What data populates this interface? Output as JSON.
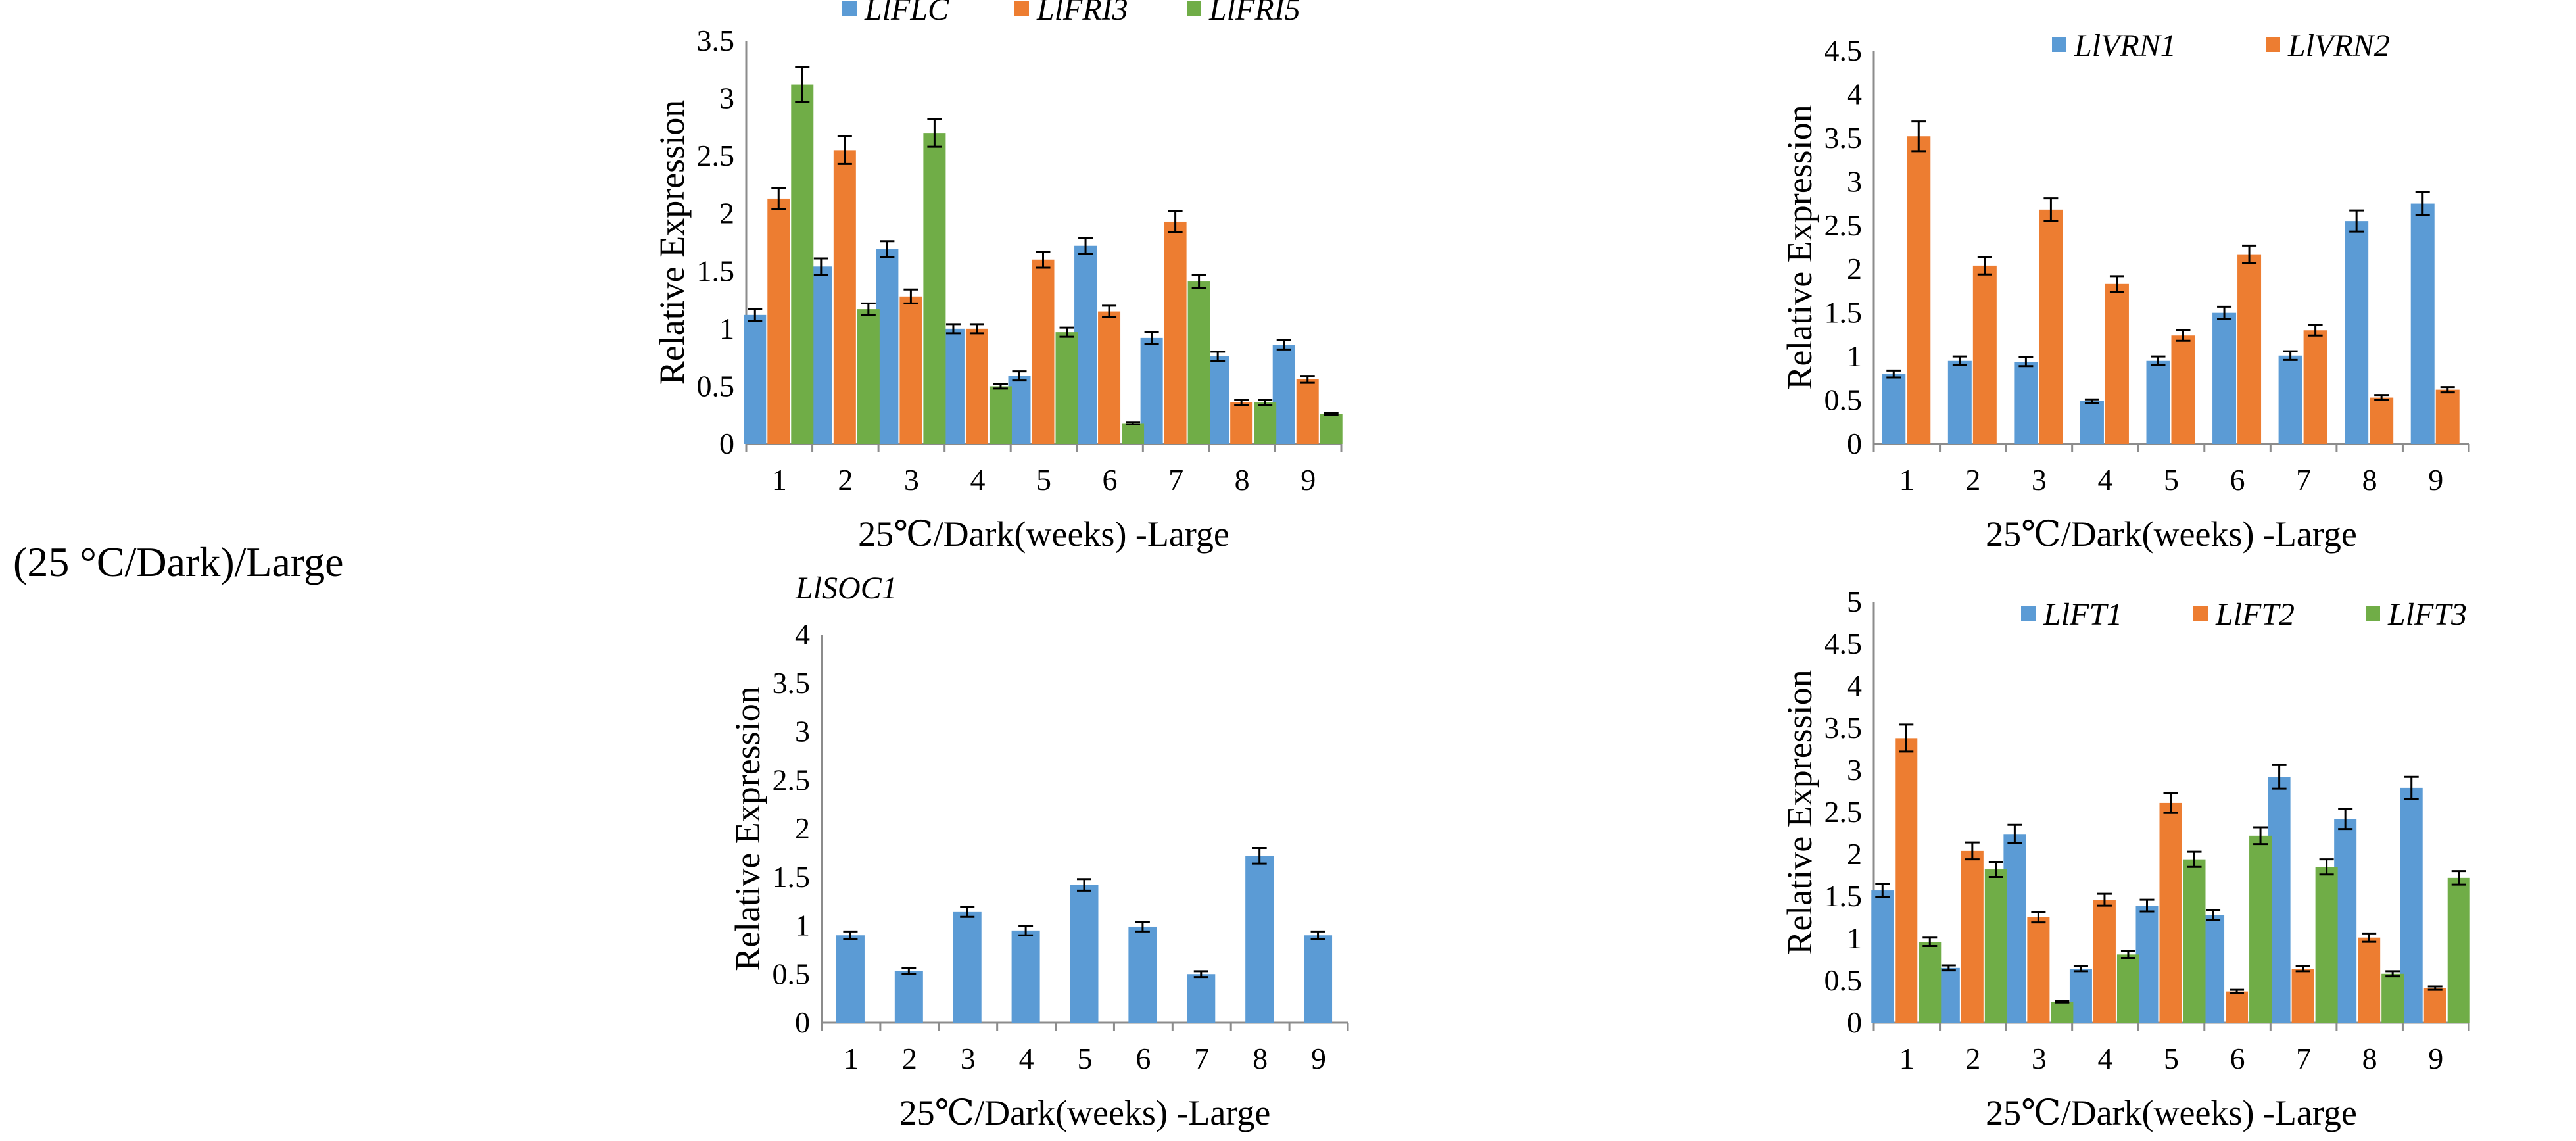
{
  "side_label": "(25 °C/Dark)/Large",
  "colors": {
    "blue": "#5b9bd5",
    "orange": "#ed7d31",
    "green": "#70ad47"
  },
  "chart_data": [
    {
      "type": "bar",
      "title": "",
      "xlabel": "25℃/Dark(weeks) -Large",
      "ylabel": "Relative Expression",
      "categories": [
        "1",
        "2",
        "3",
        "4",
        "5",
        "6",
        "7",
        "8",
        "9"
      ],
      "ylim": [
        0,
        3.5
      ],
      "yticks": [
        "0",
        "0.5",
        "1",
        "1.5",
        "2",
        "2.5",
        "3",
        "3.5"
      ],
      "legend_position": "top",
      "series": [
        {
          "name": "LlFLC",
          "color": "#5b9bd5",
          "values": [
            1.12,
            1.54,
            1.69,
            1.0,
            0.59,
            1.72,
            0.92,
            0.76,
            0.86
          ],
          "errors": [
            0.05,
            0.07,
            0.07,
            0.04,
            0.04,
            0.07,
            0.05,
            0.04,
            0.04
          ]
        },
        {
          "name": "LlFRI3",
          "color": "#ed7d31",
          "values": [
            2.13,
            2.55,
            1.28,
            1.0,
            1.6,
            1.15,
            1.93,
            0.36,
            0.56
          ],
          "errors": [
            0.09,
            0.12,
            0.06,
            0.04,
            0.07,
            0.05,
            0.09,
            0.02,
            0.03
          ]
        },
        {
          "name": "LlFRI5",
          "color": "#70ad47",
          "values": [
            3.12,
            1.17,
            2.7,
            0.5,
            0.97,
            0.18,
            1.41,
            0.36,
            0.26
          ],
          "errors": [
            0.15,
            0.05,
            0.12,
            0.02,
            0.04,
            0.01,
            0.06,
            0.02,
            0.01
          ]
        }
      ]
    },
    {
      "type": "bar",
      "title": "",
      "xlabel": "25℃/Dark(weeks) -Large",
      "ylabel": "Relative Expression",
      "categories": [
        "1",
        "2",
        "3",
        "4",
        "5",
        "6",
        "7",
        "8",
        "9"
      ],
      "ylim": [
        0,
        4.5
      ],
      "yticks": [
        "0",
        "0.5",
        "1",
        "1.5",
        "2",
        "2.5",
        "3",
        "3.5",
        "4",
        "4.5"
      ],
      "legend_position": "top",
      "series": [
        {
          "name": "LlVRN1",
          "color": "#5b9bd5",
          "values": [
            0.8,
            0.95,
            0.94,
            0.49,
            0.95,
            1.5,
            1.01,
            2.55,
            2.75
          ],
          "errors": [
            0.04,
            0.05,
            0.05,
            0.02,
            0.05,
            0.07,
            0.05,
            0.12,
            0.13
          ]
        },
        {
          "name": "LlVRN2",
          "color": "#ed7d31",
          "values": [
            3.52,
            2.04,
            2.68,
            1.83,
            1.24,
            2.17,
            1.3,
            0.53,
            0.62
          ],
          "errors": [
            0.17,
            0.1,
            0.13,
            0.09,
            0.06,
            0.1,
            0.06,
            0.03,
            0.03
          ]
        }
      ]
    },
    {
      "type": "bar",
      "title": "",
      "xlabel": "25℃/Dark(weeks) -Large",
      "ylabel": "Relative Expression",
      "categories": [
        "1",
        "2",
        "3",
        "4",
        "5",
        "6",
        "7",
        "8",
        "9"
      ],
      "ylim": [
        0,
        4
      ],
      "yticks": [
        "0",
        "0.5",
        "1",
        "1.5",
        "2",
        "2.5",
        "3",
        "3.5",
        "4"
      ],
      "legend_position": "top-left",
      "series": [
        {
          "name": "LlSOC1",
          "color": "#5b9bd5",
          "values": [
            0.9,
            0.53,
            1.14,
            0.95,
            1.42,
            0.99,
            0.5,
            1.72,
            0.9
          ],
          "errors": [
            0.04,
            0.03,
            0.05,
            0.05,
            0.06,
            0.05,
            0.03,
            0.08,
            0.04
          ]
        }
      ]
    },
    {
      "type": "bar",
      "title": "",
      "xlabel": "25℃/Dark(weeks) -Large",
      "ylabel": "Relative Expression",
      "categories": [
        "1",
        "2",
        "3",
        "4",
        "5",
        "6",
        "7",
        "8",
        "9"
      ],
      "ylim": [
        0,
        5
      ],
      "yticks": [
        "0",
        "0.5",
        "1",
        "1.5",
        "2",
        "2.5",
        "3",
        "3.5",
        "4",
        "4.5",
        "5"
      ],
      "legend_position": "top",
      "series": [
        {
          "name": "LlFT1",
          "color": "#5b9bd5",
          "values": [
            1.57,
            0.65,
            2.24,
            0.64,
            1.39,
            1.28,
            2.92,
            2.42,
            2.79
          ],
          "errors": [
            0.08,
            0.03,
            0.11,
            0.03,
            0.07,
            0.06,
            0.14,
            0.12,
            0.13
          ]
        },
        {
          "name": "LlFT2",
          "color": "#ed7d31",
          "values": [
            3.38,
            2.04,
            1.25,
            1.46,
            2.61,
            0.37,
            0.64,
            1.01,
            0.41
          ],
          "errors": [
            0.16,
            0.1,
            0.06,
            0.07,
            0.12,
            0.02,
            0.03,
            0.05,
            0.02
          ]
        },
        {
          "name": "LlFT3",
          "color": "#70ad47",
          "values": [
            0.96,
            1.82,
            0.25,
            0.81,
            1.94,
            2.22,
            1.85,
            0.58,
            1.72
          ],
          "errors": [
            0.05,
            0.09,
            0.01,
            0.04,
            0.09,
            0.1,
            0.09,
            0.03,
            0.08
          ]
        }
      ]
    }
  ]
}
